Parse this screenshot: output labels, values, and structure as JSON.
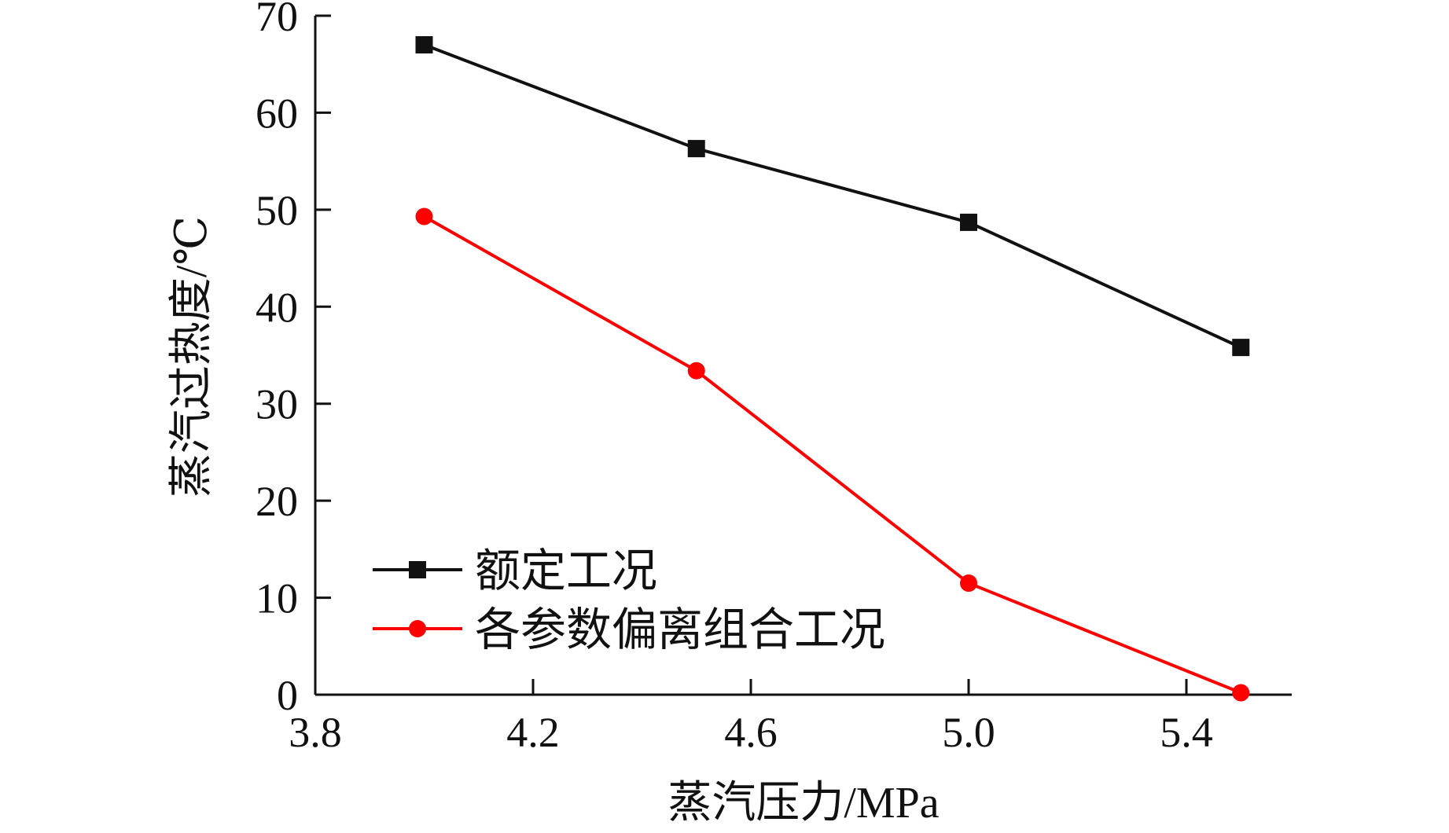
{
  "chart_data": {
    "type": "line",
    "xlabel": "蒸汽压力/MPa",
    "ylabel": "蒸汽过热度/℃",
    "xlim": [
      3.8,
      5.6
    ],
    "ylim": [
      0,
      70
    ],
    "x_ticks": [
      "3.8",
      "4.2",
      "4.6",
      "5.0",
      "5.4"
    ],
    "y_ticks": [
      "0",
      "10",
      "20",
      "30",
      "40",
      "50",
      "60",
      "70"
    ],
    "x": [
      4.0,
      4.5,
      5.0,
      5.5
    ],
    "series": [
      {
        "name": "额定工况",
        "values": [
          67.0,
          56.3,
          48.7,
          35.8
        ],
        "color": "#111111",
        "marker": "square"
      },
      {
        "name": "各参数偏离组合工况",
        "values": [
          49.3,
          33.4,
          11.5,
          0.2
        ],
        "color": "#ff0000",
        "marker": "circle"
      }
    ],
    "grid": false,
    "legend_position": "lower-left"
  }
}
